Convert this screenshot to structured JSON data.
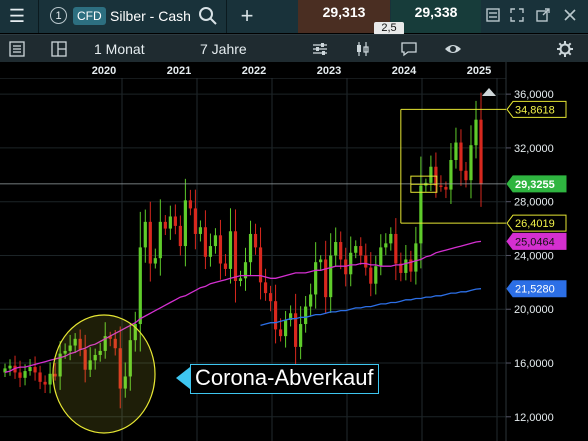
{
  "header": {
    "menu_icon": "hamburger-icon",
    "tab_number": "1",
    "badge": "CFD",
    "instrument": "Silber - Cash",
    "search_icon": "search-icon",
    "add_icon": "plus-icon",
    "bid": "29,313",
    "ask": "29,338",
    "spread": "2,5",
    "window_icons": [
      "checklist-icon",
      "expand-icon",
      "popout-icon",
      "close-icon"
    ]
  },
  "toolbar": {
    "list_icon": "list-icon",
    "layout_icon": "layout-icon",
    "interval": "1 Monat",
    "range": "7 Jahre",
    "icons": [
      "sliders-icon",
      "candlestick-icon",
      "comment-icon",
      "eye-icon",
      "gear-icon"
    ]
  },
  "annotation": {
    "callout": "Corona-Abverkauf"
  },
  "colors": {
    "up": "#5fcc2b",
    "down": "#d8281e",
    "ma_short": "#d42fd0",
    "ma_long": "#2c6fe6",
    "current_price": "#2fb540",
    "highlight": "#e6e633"
  },
  "chart_data": {
    "type": "candlestick",
    "interval": "1 Monat",
    "range": "7 Jahre",
    "x_labels": [
      "2020",
      "2021",
      "2022",
      "2023",
      "2024",
      "2025"
    ],
    "y_labels": [
      "36,0000",
      "32,0000",
      "28,0000",
      "24,0000",
      "20,0000",
      "16,0000",
      "12,0000"
    ],
    "y_ticks": [
      36,
      32,
      28,
      24,
      20,
      16,
      12
    ],
    "ylim": [
      10.2,
      37.2
    ],
    "price_tags": {
      "high": "34,8618",
      "current": "29,3255",
      "low": "26,4019",
      "ma_short": "25,0464",
      "ma_long": "21,5280"
    },
    "price_levels": {
      "high": 34.8618,
      "current": 29.3255,
      "low": 26.4019,
      "ma_short": 25.0464,
      "ma_long": 21.528
    },
    "closes": [
      15.6,
      15.8,
      15.3,
      14.9,
      15.4,
      15.7,
      15.3,
      14.6,
      14.4,
      15.2,
      15.0,
      16.7,
      16.9,
      17.3,
      17.8,
      17.0,
      15.5,
      16.2,
      16.6,
      16.9,
      18.0,
      17.8,
      17.1,
      14.1,
      15.0,
      17.7,
      18.9,
      24.6,
      26.5,
      23.4,
      23.8,
      26.5,
      26.0,
      26.9,
      26.2,
      24.7,
      28.1,
      27.5,
      25.6,
      26.1,
      23.9,
      24.7,
      25.5,
      23.4,
      23.0,
      25.8,
      22.1,
      22.3,
      23.5,
      25.6,
      24.6,
      22.0,
      21.2,
      20.6,
      18.5,
      18.0,
      19.2,
      19.7,
      17.2,
      18.9,
      20.2,
      21.1,
      23.5,
      23.7,
      20.9,
      24.0,
      25.0,
      23.7,
      22.6,
      24.2,
      24.7,
      24.0,
      23.1,
      21.9,
      23.2,
      24.6,
      24.9,
      25.6,
      23.4,
      22.7,
      23.7,
      22.8,
      24.9,
      29.2,
      29.4,
      30.6,
      29.2,
      29.1,
      28.9,
      31.1,
      32.4,
      30.3,
      29.6,
      32.2,
      34.1,
      29.3
    ],
    "ma_short": [
      15.3,
      15.4,
      15.6,
      15.7,
      15.7,
      15.8,
      15.9,
      16.0,
      16.1,
      16.2,
      16.3,
      16.4,
      16.5,
      16.7,
      16.8,
      17.0,
      17.1,
      17.3,
      17.4,
      17.6,
      17.8,
      18.0,
      18.2,
      18.4,
      18.6,
      18.8,
      19.0,
      19.3,
      19.5,
      19.7,
      19.9,
      20.1,
      20.3,
      20.5,
      20.7,
      20.9,
      21.0,
      21.2,
      21.4,
      21.6,
      21.7,
      21.9,
      22.0,
      22.1,
      22.2,
      22.3,
      22.4,
      22.5,
      22.5,
      22.5,
      22.5,
      22.5,
      22.4,
      22.3,
      22.3,
      22.4,
      22.5,
      22.6,
      22.7,
      22.7,
      22.7,
      22.8,
      22.9,
      22.9,
      23.0,
      23.1,
      23.2,
      23.2,
      23.2,
      23.3,
      23.3,
      23.4,
      23.4,
      23.3,
      23.3,
      23.2,
      23.2,
      23.2,
      23.3,
      23.3,
      23.4,
      23.5,
      23.6,
      23.7,
      23.9,
      24.0,
      24.2,
      24.3,
      24.4,
      24.5,
      24.6,
      24.7,
      24.8,
      24.9,
      25.0,
      25.05
    ],
    "ma_long": [
      18.8,
      18.9,
      19.0,
      19.0,
      19.1,
      19.2,
      19.3,
      19.3,
      19.4,
      19.4,
      19.5,
      19.6,
      19.6,
      19.7,
      19.8,
      19.8,
      19.9,
      19.9,
      20.0,
      20.1,
      20.1,
      20.2,
      20.2,
      20.3,
      20.4,
      20.4,
      20.5,
      20.5,
      20.6,
      20.7,
      20.7,
      20.8,
      20.8,
      20.9,
      20.9,
      21.0,
      21.0,
      21.1,
      21.2,
      21.2,
      21.3,
      21.3,
      21.4,
      21.5,
      21.53
    ]
  }
}
